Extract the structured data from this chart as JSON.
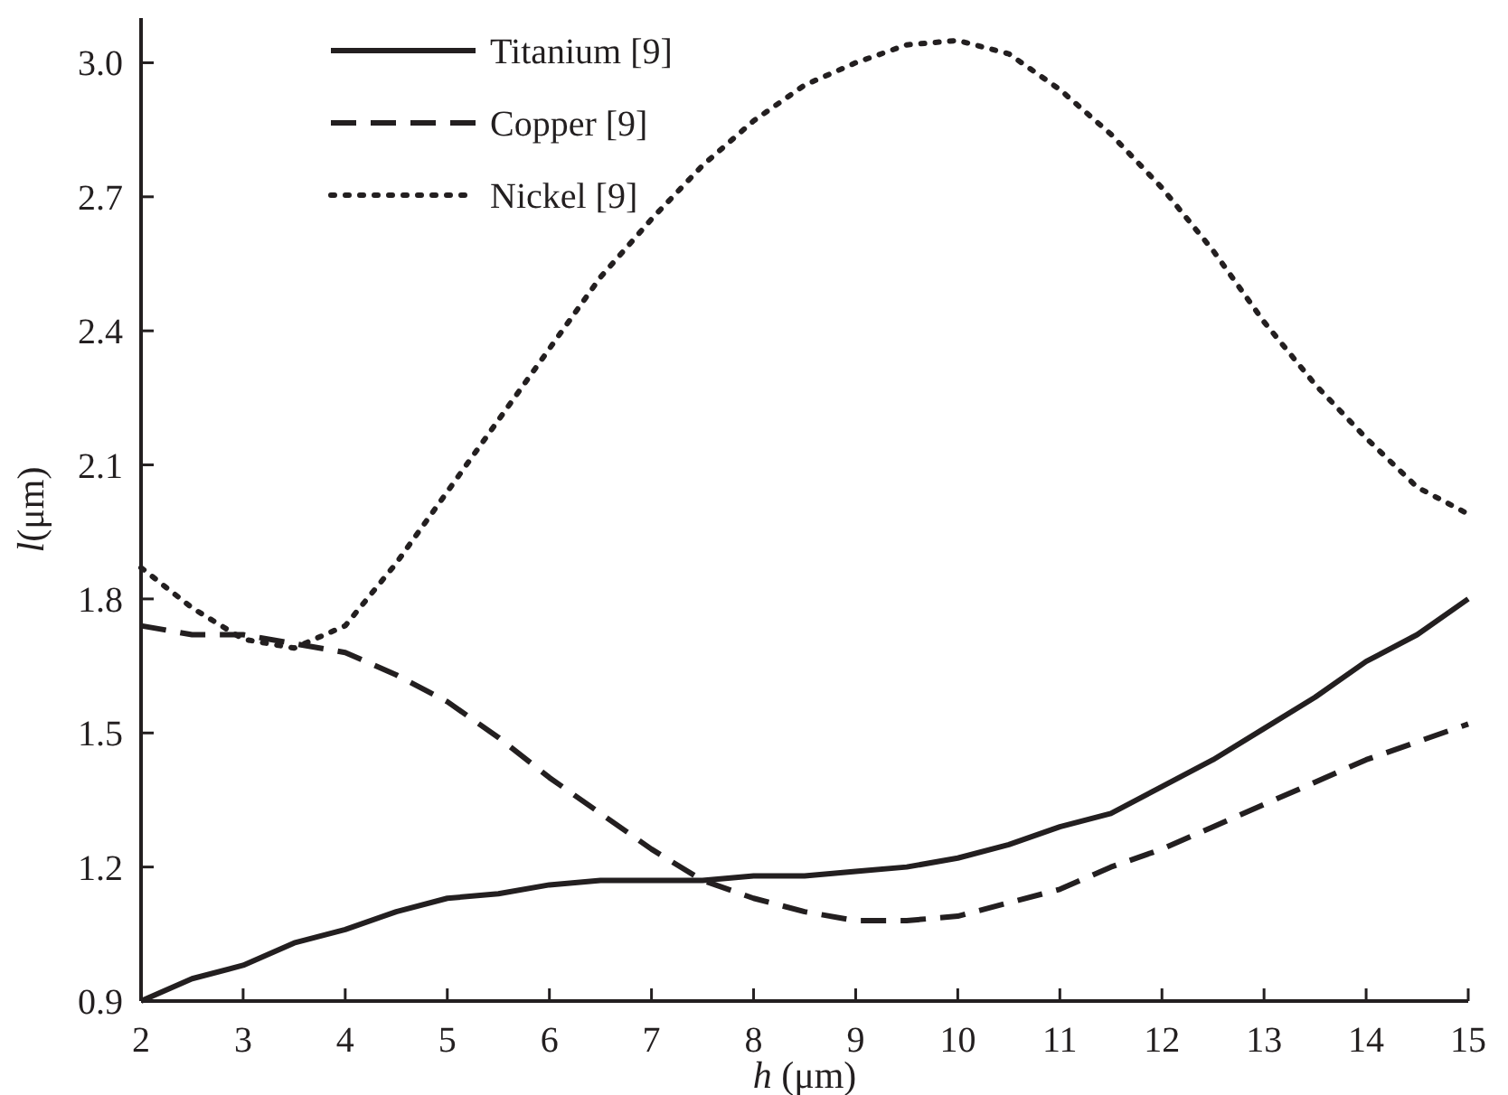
{
  "chart_data": {
    "type": "line",
    "xlabel": "h (μm)",
    "ylabel": "l(μm)",
    "x": [
      2,
      2.5,
      3,
      3.5,
      4,
      4.5,
      5,
      5.5,
      6,
      6.5,
      7,
      7.5,
      8,
      8.5,
      9,
      9.5,
      10,
      10.5,
      11,
      11.5,
      12,
      12.5,
      13,
      13.5,
      14,
      14.5,
      15
    ],
    "series": [
      {
        "name": "Titanium [9]",
        "color": "#231f20",
        "line_style": "solid",
        "values": [
          0.9,
          0.95,
          0.98,
          1.03,
          1.06,
          1.1,
          1.13,
          1.14,
          1.16,
          1.17,
          1.17,
          1.17,
          1.18,
          1.18,
          1.19,
          1.2,
          1.22,
          1.25,
          1.29,
          1.32,
          1.38,
          1.44,
          1.51,
          1.58,
          1.66,
          1.72,
          1.8
        ]
      },
      {
        "name": "Copper [9]",
        "color": "#231f20",
        "line_style": "dashed",
        "values": [
          1.74,
          1.72,
          1.72,
          1.7,
          1.68,
          1.63,
          1.57,
          1.49,
          1.4,
          1.32,
          1.24,
          1.17,
          1.13,
          1.1,
          1.08,
          1.08,
          1.09,
          1.12,
          1.15,
          1.2,
          1.24,
          1.29,
          1.34,
          1.39,
          1.44,
          1.48,
          1.52
        ]
      },
      {
        "name": "Nickel [9]",
        "color": "#231f20",
        "line_style": "dotted",
        "values": [
          1.87,
          1.78,
          1.71,
          1.69,
          1.74,
          1.88,
          2.04,
          2.2,
          2.36,
          2.52,
          2.65,
          2.77,
          2.87,
          2.95,
          3.0,
          3.04,
          3.05,
          3.02,
          2.94,
          2.84,
          2.72,
          2.58,
          2.42,
          2.28,
          2.16,
          2.05,
          1.99
        ]
      }
    ],
    "xlim": [
      2,
      15
    ],
    "xticks": [
      2,
      3,
      4,
      5,
      6,
      7,
      8,
      9,
      10,
      11,
      12,
      13,
      14,
      15
    ],
    "ylim": [
      0.9,
      3.1
    ],
    "yticks": [
      {
        "value": 0.9,
        "label": "0.9"
      },
      {
        "value": 1.2,
        "label": "1.2"
      },
      {
        "value": 1.5,
        "label": "1.5"
      },
      {
        "value": 1.8,
        "label": "1.8"
      },
      {
        "value": 2.1,
        "label": "2.1"
      },
      {
        "value": 2.4,
        "label": "2.4"
      },
      {
        "value": 2.7,
        "label": "2.7"
      },
      {
        "value": 3.0,
        "label": "3.0"
      }
    ],
    "grid": false,
    "legend": "top left"
  }
}
